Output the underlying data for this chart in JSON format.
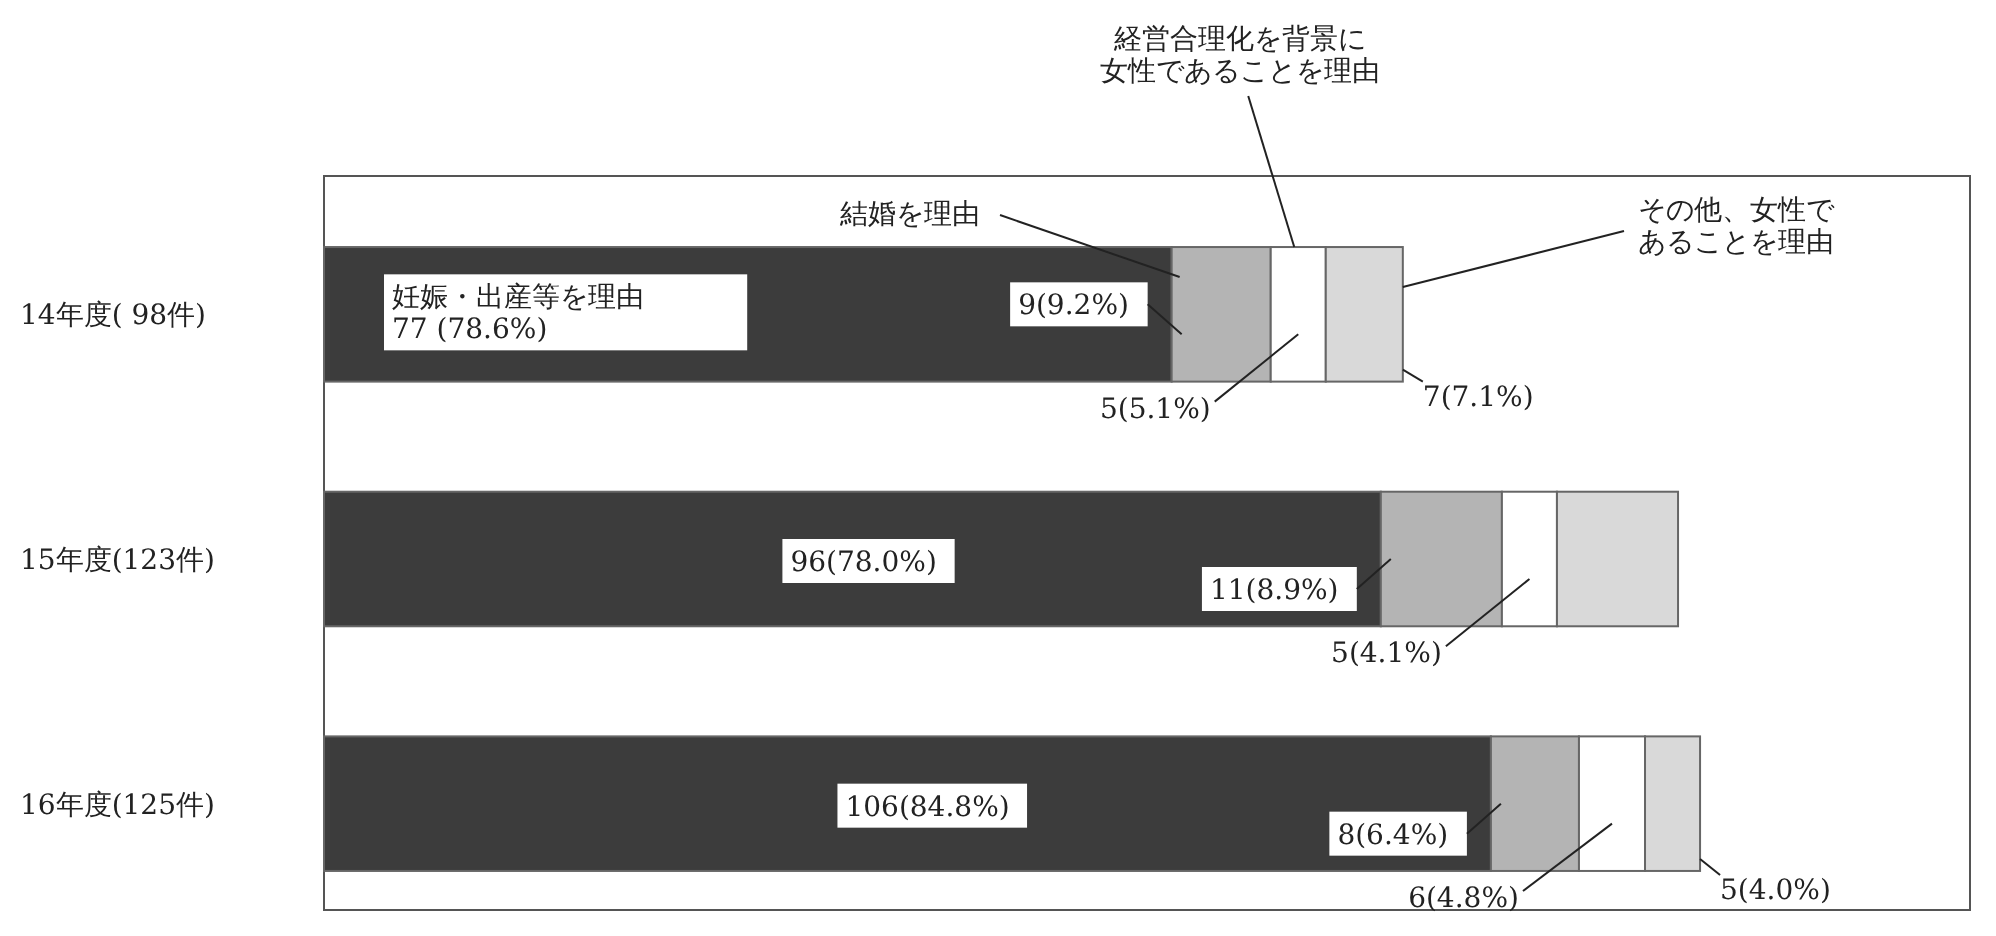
{
  "chart_data": {
    "type": "bar",
    "orientation": "horizontal",
    "stacked": true,
    "legend": false,
    "categories": [
      "14年度( 98件)",
      "15年度(123件)",
      "16年度(125件)"
    ],
    "series": [
      {
        "name": "妊娠・出産等を理由",
        "color": "#3c3c3c",
        "values": [
          77,
          96,
          106
        ],
        "value_labels": [
          "77 (78.6%)",
          "96(78.0%)",
          "106(84.8%)"
        ]
      },
      {
        "name": "結婚を理由",
        "color": "#b4b4b4",
        "values": [
          9,
          11,
          8
        ],
        "value_labels": [
          "9(9.2%)",
          "11(8.9%)",
          "8(6.4%)"
        ]
      },
      {
        "name": "経営合理化を背景に女性であることを理由",
        "color": "#ffffff",
        "values": [
          5,
          5,
          6
        ],
        "value_labels": [
          "5(5.1%)",
          "5(4.1%)",
          "6(4.8%)"
        ]
      },
      {
        "name": "その他、女性であることを理由",
        "color": "#d9d9d9",
        "values": [
          7,
          11,
          5
        ],
        "value_labels": [
          "7(7.1%)",
          null,
          "5(4.0%)"
        ]
      }
    ]
  }
}
